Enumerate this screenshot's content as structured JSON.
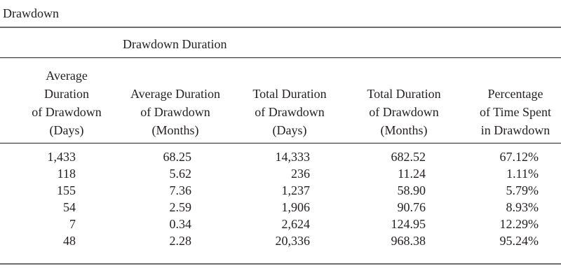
{
  "table": {
    "label": "Drawdown",
    "group_heading": "Drawdown Duration",
    "columns": [
      [
        "Average",
        "Duration",
        "of Drawdown",
        "(Days)"
      ],
      [
        "Average Duration",
        "of Drawdown",
        "(Months)"
      ],
      [
        "Total Duration",
        "of Drawdown",
        "(Days)"
      ],
      [
        "Total Duration",
        "of Drawdown",
        "(Months)"
      ],
      [
        "Percentage",
        "of Time Spent",
        "in Drawdown"
      ]
    ],
    "rows": [
      [
        "1,433",
        "68.25",
        "14,333",
        "682.52",
        "67.12%"
      ],
      [
        "118",
        "5.62",
        "236",
        "11.24",
        "1.11%"
      ],
      [
        "155",
        "7.36",
        "1,237",
        "58.90",
        "5.79%"
      ],
      [
        "54",
        "2.59",
        "1,906",
        "90.76",
        "8.93%"
      ],
      [
        "7",
        "0.34",
        "2,624",
        "124.95",
        "12.29%"
      ],
      [
        "48",
        "2.28",
        "20,336",
        "968.38",
        "95.24%"
      ]
    ]
  }
}
